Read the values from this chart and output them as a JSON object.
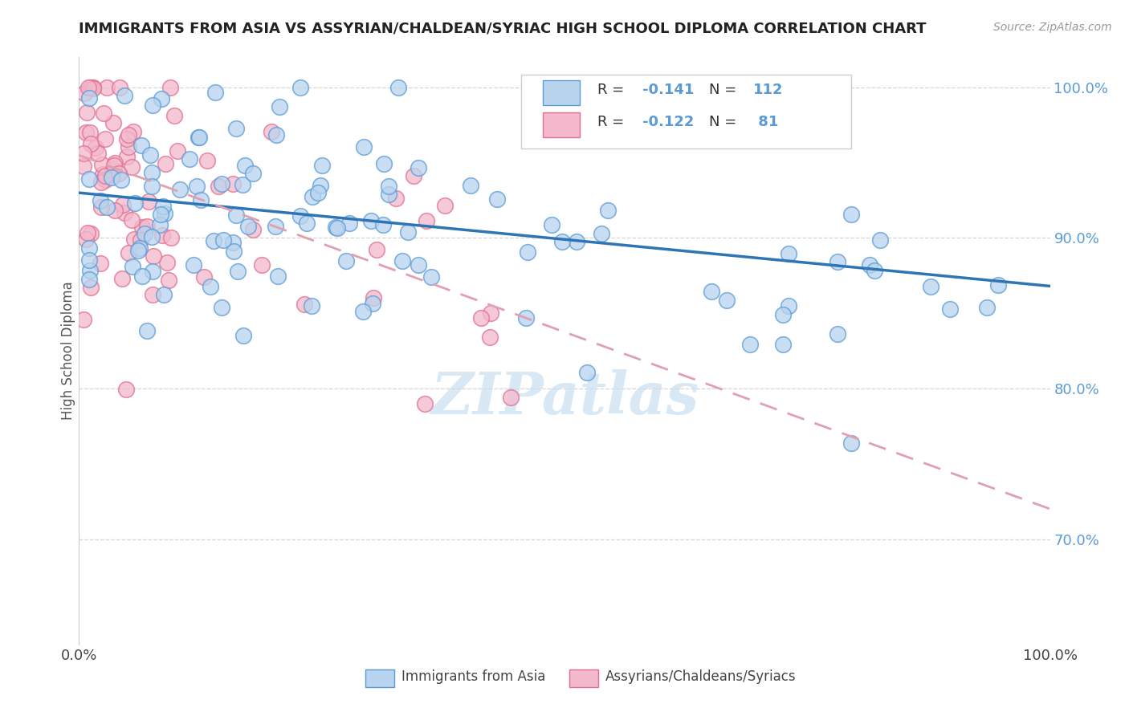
{
  "title": "IMMIGRANTS FROM ASIA VS ASSYRIAN/CHALDEAN/SYRIAC HIGH SCHOOL DIPLOMA CORRELATION CHART",
  "source": "Source: ZipAtlas.com",
  "ylabel": "High School Diploma",
  "legend_label1": "Immigrants from Asia",
  "legend_label2": "Assyrians/Chaldeans/Syriacs",
  "R1": -0.141,
  "N1": 112,
  "R2": -0.122,
  "N2": 81,
  "color_blue_fill": "#b8d4ee",
  "color_blue_edge": "#5b9bd5",
  "color_pink_fill": "#f4b8cc",
  "color_pink_edge": "#e07090",
  "color_blue_line": "#2e75b6",
  "color_pink_line": "#e0a0b0",
  "ytick_values": [
    0.7,
    0.8,
    0.9,
    1.0
  ],
  "ytick_labels": [
    "70.0%",
    "80.0%",
    "90.0%",
    "100.0%"
  ],
  "xlim": [
    0.0,
    1.0
  ],
  "ylim": [
    0.63,
    1.02
  ],
  "blue_trend_x0": 0.0,
  "blue_trend_y0": 0.93,
  "blue_trend_x1": 1.0,
  "blue_trend_y1": 0.868,
  "pink_trend_x0": 0.0,
  "pink_trend_y0": 0.955,
  "pink_trend_x1": 1.0,
  "pink_trend_y1": 0.72,
  "watermark": "ZIPatlas",
  "watermark_color": "#c8dff0"
}
